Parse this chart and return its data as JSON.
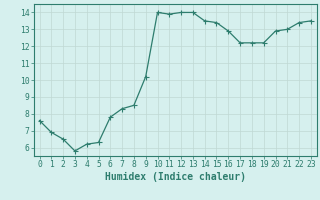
{
  "x": [
    0,
    1,
    2,
    3,
    4,
    5,
    6,
    7,
    8,
    9,
    10,
    11,
    12,
    13,
    14,
    15,
    16,
    17,
    18,
    19,
    20,
    21,
    22,
    23
  ],
  "y": [
    7.6,
    6.9,
    6.5,
    5.8,
    6.2,
    6.3,
    7.8,
    8.3,
    8.5,
    10.2,
    14.0,
    13.9,
    14.0,
    14.0,
    13.5,
    13.4,
    12.9,
    12.2,
    12.2,
    12.2,
    12.9,
    13.0,
    13.4,
    13.5
  ],
  "xlabel": "Humidex (Indice chaleur)",
  "line_color": "#2e7d6e",
  "marker": "P",
  "marker_size": 2.0,
  "line_width": 0.9,
  "bg_color": "#d6f0ee",
  "grid_color": "#c0d8d4",
  "xlim": [
    -0.5,
    23.5
  ],
  "ylim": [
    5.5,
    14.5
  ],
  "xticks": [
    0,
    1,
    2,
    3,
    4,
    5,
    6,
    7,
    8,
    9,
    10,
    11,
    12,
    13,
    14,
    15,
    16,
    17,
    18,
    19,
    20,
    21,
    22,
    23
  ],
  "yticks": [
    6,
    7,
    8,
    9,
    10,
    11,
    12,
    13,
    14
  ],
  "tick_label_fontsize": 5.8,
  "xlabel_fontsize": 7.0
}
